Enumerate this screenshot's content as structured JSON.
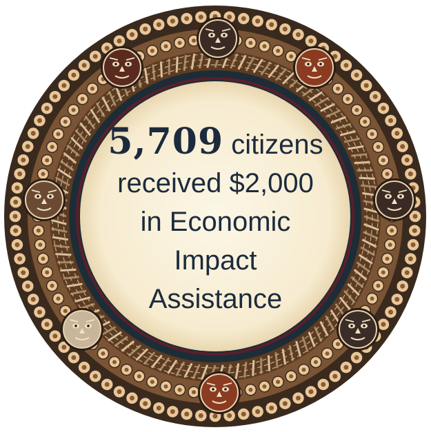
{
  "message": {
    "count": "5,709",
    "line1_rest": " citizens",
    "line2": "received $2,000",
    "line3": "in Economic",
    "line4": "Impact",
    "line5": "Assistance"
  },
  "palette": {
    "cream": "#f9f1dc",
    "beadOuter": "#3a2a1e",
    "beadInner": "#e8c79a",
    "band": "#6e4a2c",
    "ringDark": "#1d2d37",
    "ringMaroon": "#5a1f2a",
    "weaveLight": "#d9c3a0",
    "weaveDark": "#5c3b23",
    "text": "#1c2b3c"
  },
  "masks": [
    {
      "name": "mask-top",
      "color": "#3b2a24",
      "icon": "geometric-star-icon"
    },
    {
      "name": "mask-top-left",
      "color": "#5a2a1f",
      "icon": "tribal-face-icon"
    },
    {
      "name": "mask-top-right",
      "color": "#8a3b22",
      "icon": "owl-face-icon"
    },
    {
      "name": "mask-left",
      "color": "#6b4a33",
      "icon": "bear-face-icon"
    },
    {
      "name": "mask-right",
      "color": "#3a2a24",
      "icon": "cat-face-icon"
    },
    {
      "name": "mask-bottom-left",
      "color": "#c9b59a",
      "icon": "lion-face-icon"
    },
    {
      "name": "mask-bottom-right",
      "color": "#3a2c26",
      "icon": "wolf-face-icon"
    },
    {
      "name": "mask-bottom",
      "color": "#8a3b22",
      "icon": "fox-face-icon"
    }
  ]
}
